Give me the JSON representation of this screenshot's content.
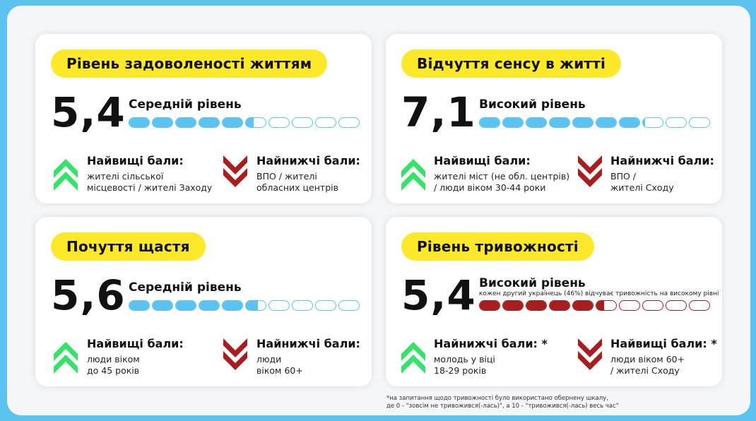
{
  "labels": {
    "highest": "Найвищі бали:",
    "lowest": "Найнижчі бали:",
    "lowest_star": "Найнижчі бали: *",
    "highest_star": "Найвищі бали: *"
  },
  "colors": {
    "background": "#5cc3f0",
    "pill": "#fde82a",
    "scale_blue": "#5cc3f0",
    "scale_red": "#a71d20",
    "arrow_up": "#36e26a",
    "arrow_down": "#a71d20"
  },
  "cards": [
    {
      "title": "Рівень задоволеності життям",
      "value": "5,4",
      "level": "Середній рівень",
      "scale": {
        "value": 5.4,
        "max": 10,
        "color": "blue"
      },
      "left": {
        "icon": "chevron-up-icon",
        "title": "Найвищі бали:",
        "lines": [
          "жителі сільської",
          "місцевості / жителі Заходу"
        ]
      },
      "right": {
        "icon": "chevron-down-icon",
        "title": "Найнижчі бали:",
        "lines": [
          "ВПО / жителі",
          "обласних центрів"
        ]
      }
    },
    {
      "title": "Відчуття сенсу в житті",
      "value": "7,1",
      "level": "Високий рівень",
      "scale": {
        "value": 7.1,
        "max": 10,
        "color": "blue"
      },
      "left": {
        "icon": "chevron-up-icon",
        "title": "Найвищі бали:",
        "lines": [
          "жителі міст (не обл. центрів)",
          "/ люди віком 30-44 роки"
        ]
      },
      "right": {
        "icon": "chevron-down-icon",
        "title": "Найнижчі бали:",
        "lines": [
          "ВПО /",
          "жителі Сходу"
        ]
      }
    },
    {
      "title": "Почуття щастя",
      "value": "5,6",
      "level": "Середній рівень",
      "scale": {
        "value": 5.6,
        "max": 10,
        "color": "blue"
      },
      "left": {
        "icon": "chevron-up-icon",
        "title": "Найвищі бали:",
        "lines": [
          "люди віком",
          "до 45 років"
        ]
      },
      "right": {
        "icon": "chevron-down-icon",
        "title": "Найнижчі бали:",
        "lines": [
          "люди",
          "віком 60+"
        ]
      }
    },
    {
      "title": "Рівень тривожності",
      "value": "5,4",
      "level": "Високий рівень",
      "subnote": "кожен другий українець (46%) відчуває тривожність на високому рівні",
      "scale": {
        "value": 5.4,
        "max": 10,
        "color": "red"
      },
      "left": {
        "icon": "chevron-up-icon",
        "title": "Найнижчі бали: *",
        "lines": [
          "молодь у віці",
          "18-29 років"
        ]
      },
      "right": {
        "icon": "chevron-down-icon",
        "title": "Найвищі бали: *",
        "lines": [
          "люди віком 60+",
          "/ жителі Сходу"
        ]
      }
    }
  ],
  "footnote": {
    "line1": "*на запитання щодо тривожності було використано обернену шкалу,",
    "line2": "де 0 - \"зовсім не тривожився(-лась)\", а 10 - \"тривожився(-лась) весь час\""
  }
}
